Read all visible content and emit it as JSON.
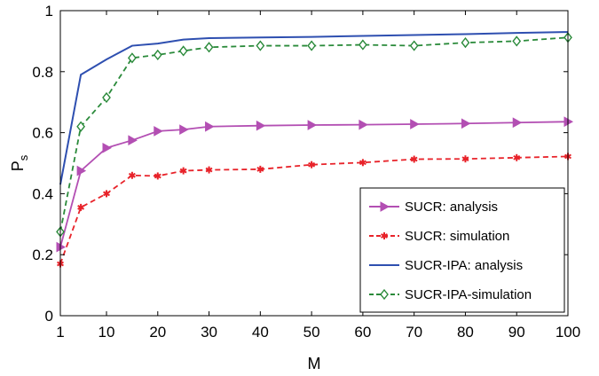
{
  "chart_data": {
    "type": "line",
    "title": "",
    "xlabel": "M",
    "ylabel": "P",
    "ylabel_sub": "s",
    "xlim": [
      1,
      100
    ],
    "ylim": [
      0,
      1
    ],
    "xticks": [
      1,
      10,
      20,
      30,
      40,
      50,
      60,
      70,
      80,
      90,
      100
    ],
    "yticks": [
      0,
      0.2,
      0.4,
      0.6,
      0.8,
      1
    ],
    "ytick_labels": [
      "0",
      "0.2",
      "0.4",
      "0.6",
      "0.8",
      "1"
    ],
    "grid": false,
    "legend_position": "bottom-right",
    "series": [
      {
        "name": "SUCR: analysis",
        "color": "#b34fb3",
        "line_style": "solid",
        "marker": "triangle-right",
        "x": [
          1,
          5,
          10,
          15,
          20,
          25,
          30,
          40,
          50,
          60,
          70,
          80,
          90,
          100
        ],
        "y": [
          0.225,
          0.475,
          0.55,
          0.575,
          0.605,
          0.61,
          0.62,
          0.623,
          0.625,
          0.626,
          0.628,
          0.63,
          0.633,
          0.636
        ]
      },
      {
        "name": "SUCR: simulation",
        "color": "#e8232a",
        "line_style": "dashed",
        "marker": "asterisk",
        "x": [
          1,
          5,
          10,
          15,
          20,
          25,
          30,
          40,
          50,
          60,
          70,
          80,
          90,
          100
        ],
        "y": [
          0.17,
          0.355,
          0.4,
          0.46,
          0.458,
          0.475,
          0.478,
          0.48,
          0.495,
          0.502,
          0.513,
          0.514,
          0.518,
          0.522
        ]
      },
      {
        "name": "SUCR-IPA: analysis",
        "color": "#2e4fb0",
        "line_style": "solid",
        "marker": "none",
        "x": [
          1,
          5,
          10,
          15,
          20,
          25,
          30,
          40,
          50,
          60,
          70,
          80,
          90,
          100
        ],
        "y": [
          0.43,
          0.79,
          0.84,
          0.885,
          0.892,
          0.905,
          0.91,
          0.912,
          0.914,
          0.917,
          0.92,
          0.923,
          0.927,
          0.93
        ]
      },
      {
        "name": "SUCR-IPA-simulation",
        "color": "#2a8a3a",
        "line_style": "dashed",
        "marker": "diamond",
        "x": [
          1,
          5,
          10,
          15,
          20,
          25,
          30,
          40,
          50,
          60,
          70,
          80,
          90,
          100
        ],
        "y": [
          0.275,
          0.62,
          0.715,
          0.845,
          0.855,
          0.868,
          0.88,
          0.885,
          0.885,
          0.888,
          0.885,
          0.895,
          0.9,
          0.912
        ]
      }
    ]
  }
}
